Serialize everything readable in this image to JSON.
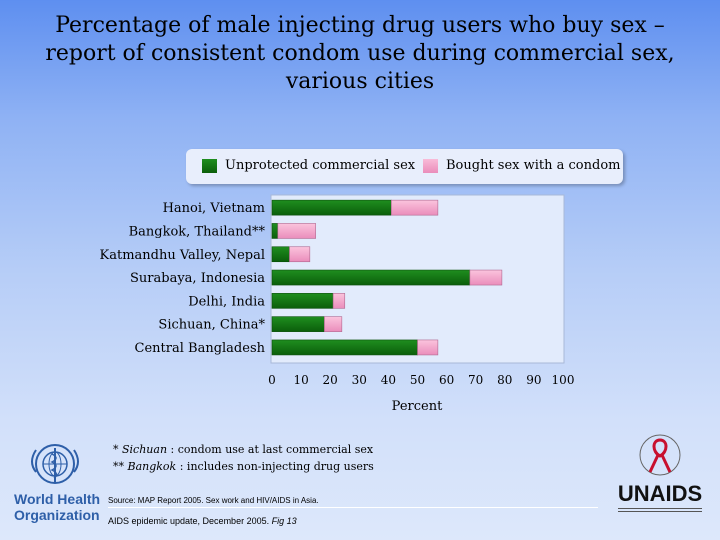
{
  "title": {
    "line1": "Percentage of male injecting drug users who buy sex –",
    "line2": "report of consistent condom use during commercial sex,",
    "line3": "various cities"
  },
  "legend": {
    "unprotected": "Unprotected commercial sex",
    "condom": "Bought sex with a condom"
  },
  "chart_data": {
    "type": "bar",
    "orientation": "horizontal",
    "stacked": true,
    "categories": [
      "Hanoi, Vietnam",
      "Bangkok, Thailand**",
      "Katmandhu Valley, Nepal",
      "Surabaya, Indonesia",
      "Delhi, India",
      "Sichuan, China*",
      "Central Bangladesh"
    ],
    "series": [
      {
        "name": "Unprotected commercial sex",
        "color": "#117511",
        "values": [
          41,
          2,
          6,
          68,
          21,
          18,
          50
        ]
      },
      {
        "name": "Bought sex with a condom",
        "color": "#f2a6c9",
        "values": [
          16,
          13,
          7,
          11,
          4,
          6,
          7
        ]
      }
    ],
    "xlabel": "Percent",
    "xlim": [
      0,
      100
    ],
    "xticks": [
      "0",
      "10",
      "20",
      "30",
      "40",
      "50",
      "60",
      "70",
      "80",
      "90",
      "100"
    ],
    "legend_position": "top"
  },
  "footnotes": {
    "line1_prefix": "* ",
    "line1_city": "Sichuan",
    "line1_text": " : condom use at last commercial sex",
    "line2_prefix": "** ",
    "line2_city": "Bangkok",
    "line2_text": " : includes non-injecting drug users"
  },
  "source": "Source:  MAP Report 2005.  Sex work and HIV/AIDS in Asia.",
  "citation": {
    "text": "AIDS epidemic update, December 2005.  ",
    "fig": "Fig 13"
  },
  "logos": {
    "who_line1": "World Health",
    "who_line2": "Organization",
    "unaids": "UNAIDS"
  }
}
